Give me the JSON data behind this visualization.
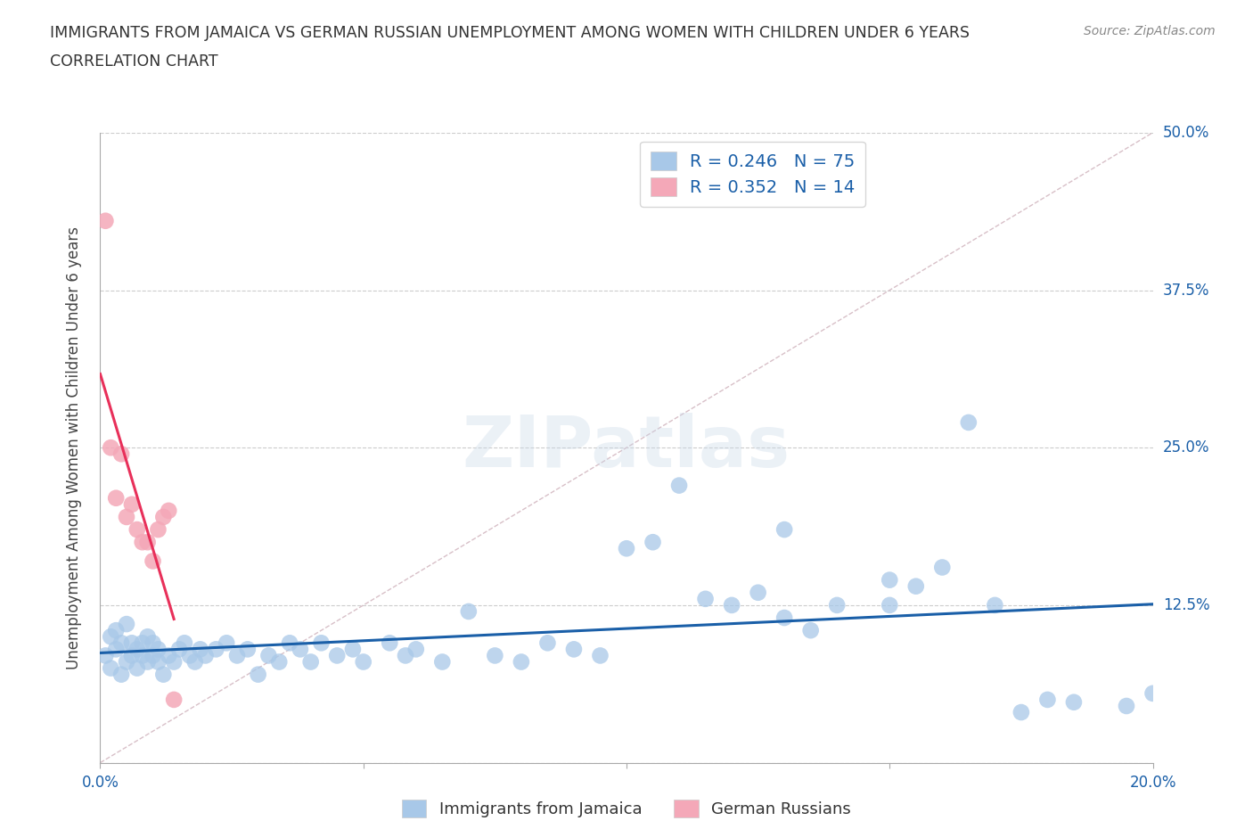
{
  "title_line1": "IMMIGRANTS FROM JAMAICA VS GERMAN RUSSIAN UNEMPLOYMENT AMONG WOMEN WITH CHILDREN UNDER 6 YEARS",
  "title_line2": "CORRELATION CHART",
  "source_text": "Source: ZipAtlas.com",
  "ylabel": "Unemployment Among Women with Children Under 6 years",
  "xmin": 0.0,
  "xmax": 0.2,
  "ymin": 0.0,
  "ymax": 0.5,
  "yticks": [
    0.0,
    0.125,
    0.25,
    0.375,
    0.5
  ],
  "ytick_labels": [
    "",
    "12.5%",
    "25.0%",
    "37.5%",
    "50.0%"
  ],
  "xticks": [
    0.0,
    0.05,
    0.1,
    0.15,
    0.2
  ],
  "xtick_labels": [
    "0.0%",
    "",
    "",
    "",
    "20.0%"
  ],
  "blue_R": 0.246,
  "blue_N": 75,
  "pink_R": 0.352,
  "pink_N": 14,
  "blue_color": "#a8c8e8",
  "pink_color": "#f4a8b8",
  "blue_line_color": "#1a5fa8",
  "pink_line_color": "#e8305a",
  "legend_label_blue": "Immigrants from Jamaica",
  "legend_label_pink": "German Russians",
  "watermark": "ZIPatlas",
  "blue_x": [
    0.001,
    0.002,
    0.002,
    0.003,
    0.003,
    0.004,
    0.004,
    0.005,
    0.005,
    0.006,
    0.006,
    0.007,
    0.007,
    0.008,
    0.008,
    0.009,
    0.009,
    0.01,
    0.01,
    0.011,
    0.011,
    0.012,
    0.013,
    0.014,
    0.015,
    0.016,
    0.017,
    0.018,
    0.019,
    0.02,
    0.022,
    0.024,
    0.026,
    0.028,
    0.03,
    0.032,
    0.034,
    0.036,
    0.038,
    0.04,
    0.042,
    0.045,
    0.048,
    0.05,
    0.055,
    0.058,
    0.06,
    0.065,
    0.07,
    0.075,
    0.08,
    0.085,
    0.09,
    0.095,
    0.1,
    0.105,
    0.11,
    0.115,
    0.12,
    0.125,
    0.13,
    0.135,
    0.14,
    0.15,
    0.155,
    0.16,
    0.17,
    0.13,
    0.15,
    0.165,
    0.175,
    0.18,
    0.185,
    0.195,
    0.2
  ],
  "blue_y": [
    0.085,
    0.1,
    0.075,
    0.09,
    0.105,
    0.07,
    0.095,
    0.08,
    0.11,
    0.085,
    0.095,
    0.075,
    0.09,
    0.085,
    0.095,
    0.08,
    0.1,
    0.085,
    0.095,
    0.08,
    0.09,
    0.07,
    0.085,
    0.08,
    0.09,
    0.095,
    0.085,
    0.08,
    0.09,
    0.085,
    0.09,
    0.095,
    0.085,
    0.09,
    0.07,
    0.085,
    0.08,
    0.095,
    0.09,
    0.08,
    0.095,
    0.085,
    0.09,
    0.08,
    0.095,
    0.085,
    0.09,
    0.08,
    0.12,
    0.085,
    0.08,
    0.095,
    0.09,
    0.085,
    0.17,
    0.175,
    0.22,
    0.13,
    0.125,
    0.135,
    0.115,
    0.105,
    0.125,
    0.125,
    0.14,
    0.155,
    0.125,
    0.185,
    0.145,
    0.27,
    0.04,
    0.05,
    0.048,
    0.045,
    0.055
  ],
  "pink_x": [
    0.001,
    0.002,
    0.003,
    0.004,
    0.005,
    0.006,
    0.007,
    0.008,
    0.009,
    0.01,
    0.011,
    0.012,
    0.013,
    0.014
  ],
  "pink_y": [
    0.43,
    0.25,
    0.21,
    0.245,
    0.195,
    0.205,
    0.185,
    0.175,
    0.175,
    0.16,
    0.185,
    0.195,
    0.2,
    0.05
  ]
}
